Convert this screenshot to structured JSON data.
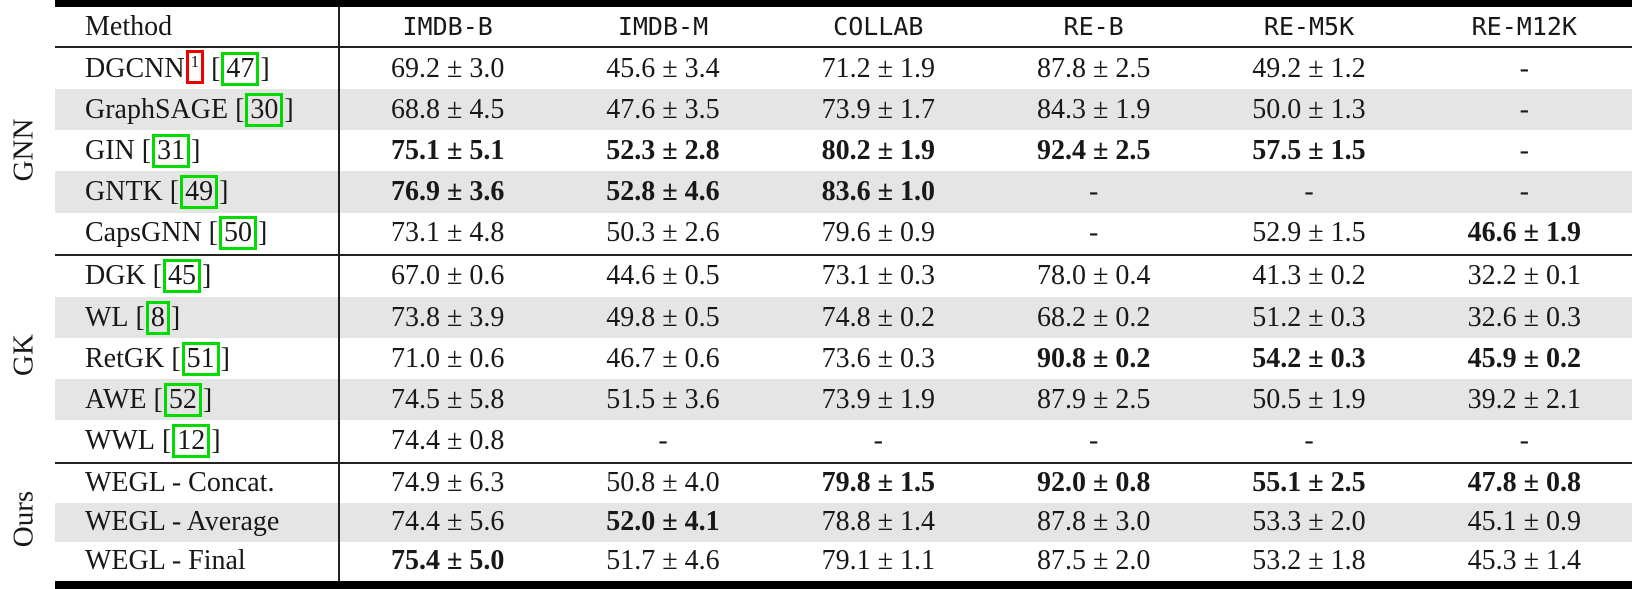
{
  "table": {
    "columns": [
      "Method",
      "IMDB-B",
      "IMDB-M",
      "COLLAB",
      "RE-B",
      "RE-M5K",
      "RE-M12K"
    ],
    "groups": [
      {
        "label": "GNN",
        "rows": [
          {
            "method": "DGCNN",
            "footnote": "1",
            "citation": "47",
            "values": [
              {
                "v": "69.2 ± 3.0",
                "b": false
              },
              {
                "v": "45.6 ± 3.4",
                "b": false
              },
              {
                "v": "71.2 ± 1.9",
                "b": false
              },
              {
                "v": "87.8 ± 2.5",
                "b": false
              },
              {
                "v": "49.2 ± 1.2",
                "b": false
              },
              {
                "v": "-",
                "b": false
              }
            ]
          },
          {
            "method": "GraphSAGE",
            "footnote": "",
            "citation": "30",
            "values": [
              {
                "v": "68.8 ± 4.5",
                "b": false
              },
              {
                "v": "47.6 ± 3.5",
                "b": false
              },
              {
                "v": "73.9 ± 1.7",
                "b": false
              },
              {
                "v": "84.3 ± 1.9",
                "b": false
              },
              {
                "v": "50.0 ± 1.3",
                "b": false
              },
              {
                "v": "-",
                "b": false
              }
            ]
          },
          {
            "method": "GIN",
            "footnote": "",
            "citation": "31",
            "values": [
              {
                "v": "75.1 ± 5.1",
                "b": true
              },
              {
                "v": "52.3 ± 2.8",
                "b": true
              },
              {
                "v": "80.2 ± 1.9",
                "b": true
              },
              {
                "v": "92.4 ± 2.5",
                "b": true
              },
              {
                "v": "57.5 ± 1.5",
                "b": true
              },
              {
                "v": "-",
                "b": false
              }
            ]
          },
          {
            "method": "GNTK",
            "footnote": "",
            "citation": "49",
            "values": [
              {
                "v": "76.9 ± 3.6",
                "b": true
              },
              {
                "v": "52.8 ± 4.6",
                "b": true
              },
              {
                "v": "83.6 ± 1.0",
                "b": true
              },
              {
                "v": "-",
                "b": false
              },
              {
                "v": "-",
                "b": false
              },
              {
                "v": "-",
                "b": false
              }
            ]
          },
          {
            "method": "CapsGNN",
            "footnote": "",
            "citation": "50",
            "values": [
              {
                "v": "73.1 ± 4.8",
                "b": false
              },
              {
                "v": "50.3 ± 2.6",
                "b": false
              },
              {
                "v": "79.6 ± 0.9",
                "b": false
              },
              {
                "v": "-",
                "b": false
              },
              {
                "v": "52.9 ± 1.5",
                "b": false
              },
              {
                "v": "46.6 ± 1.9",
                "b": true
              }
            ]
          }
        ]
      },
      {
        "label": "GK",
        "rows": [
          {
            "method": "DGK",
            "footnote": "",
            "citation": "45",
            "values": [
              {
                "v": "67.0 ± 0.6",
                "b": false
              },
              {
                "v": "44.6 ± 0.5",
                "b": false
              },
              {
                "v": "73.1 ± 0.3",
                "b": false
              },
              {
                "v": "78.0 ± 0.4",
                "b": false
              },
              {
                "v": "41.3 ± 0.2",
                "b": false
              },
              {
                "v": "32.2 ± 0.1",
                "b": false
              }
            ]
          },
          {
            "method": "WL",
            "footnote": "",
            "citation": "8",
            "values": [
              {
                "v": "73.8 ± 3.9",
                "b": false
              },
              {
                "v": "49.8 ± 0.5",
                "b": false
              },
              {
                "v": "74.8 ± 0.2",
                "b": false
              },
              {
                "v": "68.2 ± 0.2",
                "b": false
              },
              {
                "v": "51.2 ± 0.3",
                "b": false
              },
              {
                "v": "32.6 ± 0.3",
                "b": false
              }
            ]
          },
          {
            "method": "RetGK",
            "footnote": "",
            "citation": "51",
            "values": [
              {
                "v": "71.0 ± 0.6",
                "b": false
              },
              {
                "v": "46.7 ± 0.6",
                "b": false
              },
              {
                "v": "73.6 ± 0.3",
                "b": false
              },
              {
                "v": "90.8 ± 0.2",
                "b": true
              },
              {
                "v": "54.2 ± 0.3",
                "b": true
              },
              {
                "v": "45.9 ± 0.2",
                "b": true
              }
            ]
          },
          {
            "method": "AWE",
            "footnote": "",
            "citation": "52",
            "values": [
              {
                "v": "74.5 ± 5.8",
                "b": false
              },
              {
                "v": "51.5 ± 3.6",
                "b": false
              },
              {
                "v": "73.9 ± 1.9",
                "b": false
              },
              {
                "v": "87.9 ± 2.5",
                "b": false
              },
              {
                "v": "50.5 ± 1.9",
                "b": false
              },
              {
                "v": "39.2 ± 2.1",
                "b": false
              }
            ]
          },
          {
            "method": "WWL",
            "footnote": "",
            "citation": "12",
            "values": [
              {
                "v": "74.4 ± 0.8",
                "b": false
              },
              {
                "v": "-",
                "b": false
              },
              {
                "v": "-",
                "b": false
              },
              {
                "v": "-",
                "b": false
              },
              {
                "v": "-",
                "b": false
              },
              {
                "v": "-",
                "b": false
              }
            ]
          }
        ]
      },
      {
        "label": "Ours",
        "rows": [
          {
            "method": "WEGL - Concat.",
            "footnote": "",
            "citation": "",
            "values": [
              {
                "v": "74.9 ± 6.3",
                "b": false
              },
              {
                "v": "50.8 ± 4.0",
                "b": false
              },
              {
                "v": "79.8 ± 1.5",
                "b": true
              },
              {
                "v": "92.0 ± 0.8",
                "b": true
              },
              {
                "v": "55.1 ± 2.5",
                "b": true
              },
              {
                "v": "47.8 ± 0.8",
                "b": true
              }
            ]
          },
          {
            "method": "WEGL - Average",
            "footnote": "",
            "citation": "",
            "values": [
              {
                "v": "74.4 ± 5.6",
                "b": false
              },
              {
                "v": "52.0 ± 4.1",
                "b": true
              },
              {
                "v": "78.8 ± 1.4",
                "b": false
              },
              {
                "v": "87.8 ± 3.0",
                "b": false
              },
              {
                "v": "53.3 ± 2.0",
                "b": false
              },
              {
                "v": "45.1 ± 0.9",
                "b": false
              }
            ]
          },
          {
            "method": "WEGL - Final",
            "footnote": "",
            "citation": "",
            "values": [
              {
                "v": "75.4 ± 5.0",
                "b": true
              },
              {
                "v": "51.7 ± 4.6",
                "b": false
              },
              {
                "v": "79.1 ± 1.1",
                "b": false
              },
              {
                "v": "87.5 ± 2.0",
                "b": false
              },
              {
                "v": "53.2 ± 1.8",
                "b": false
              },
              {
                "v": "45.3 ± 1.4",
                "b": false
              }
            ]
          }
        ]
      }
    ]
  },
  "annotations": {
    "citation_box_color": "#00dc00",
    "footnote_box_color": "#ee0000",
    "stripe_color": "#e5e5e5"
  }
}
